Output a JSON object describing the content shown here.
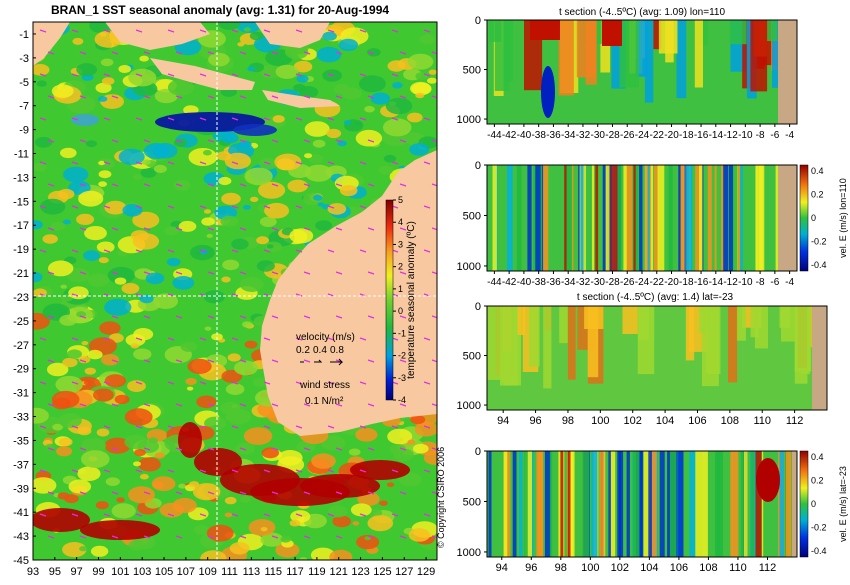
{
  "main_map": {
    "title": "BRAN_1  SST seasonal anomaly  (avg: 1.31) for 20-Aug-1994",
    "lat_ticks": [
      "-1",
      "-3",
      "-5",
      "-7",
      "-9",
      "-11",
      "-13",
      "-15",
      "-17",
      "-19",
      "-21",
      "-23",
      "-25",
      "-27",
      "-29",
      "-31",
      "-33",
      "-35",
      "-37",
      "-39",
      "-41",
      "-43",
      "-45"
    ],
    "lon_ticks": [
      "93",
      "95",
      "97",
      "99",
      "101",
      "103",
      "105",
      "107",
      "109",
      "111",
      "113",
      "115",
      "117",
      "119",
      "121",
      "123",
      "125",
      "127",
      "129"
    ],
    "colorbar": {
      "label": "temperature seasonal anomaly (ºC)",
      "ticks": [
        "5",
        "4",
        "3",
        "2",
        "1",
        "0",
        "-1",
        "-2",
        "-3",
        "-4"
      ],
      "range": [
        -4,
        5
      ]
    },
    "legend": {
      "velocity_title": "velocity (m/s)",
      "velocity_values": [
        "0.2",
        "0.4",
        "0.8"
      ],
      "wind_title": "wind stress",
      "wind_value": "0.1 N/m²"
    },
    "crosshair": {
      "lat": -23,
      "lon": 110
    },
    "colors": {
      "land": "#f8c8a0",
      "ocean_mid": "#28c028",
      "warm": "#f0e020",
      "cold": "#0818a0",
      "hot": "#b00000"
    }
  },
  "copyright": "© Copyright CSIRO 2006",
  "panels": [
    {
      "name": "t-section-lon110",
      "title": "t section (-4..5ºC) (avg: 1.09) lon=110",
      "x_ticks": [
        "-44",
        "-42",
        "-40",
        "-38",
        "-36",
        "-34",
        "-32",
        "-30",
        "-28",
        "-26",
        "-24",
        "-22",
        "-20",
        "-18",
        "-16",
        "-14",
        "-12",
        "-10",
        "-8",
        "-6",
        "-4"
      ],
      "y_ticks": [
        "0",
        "500",
        "1000"
      ],
      "colorbar": null
    },
    {
      "name": "velE-section-lon110",
      "title": "",
      "x_ticks": [
        "-44",
        "-42",
        "-40",
        "-38",
        "-36",
        "-34",
        "-32",
        "-30",
        "-28",
        "-26",
        "-24",
        "-22",
        "-20",
        "-18",
        "-16",
        "-14",
        "-12",
        "-10",
        "-8",
        "-6",
        "-4"
      ],
      "y_ticks": [
        "0",
        "500",
        "1000"
      ],
      "colorbar": {
        "label": "vel. E (m/s) lon=110",
        "ticks": [
          "0.4",
          "0.2",
          "0",
          "-0.2",
          "-0.4"
        ]
      }
    },
    {
      "name": "t-section-lat-23",
      "title": "t section (-4..5ºC) (avg: 1.4) lat=-23",
      "x_ticks": [
        "94",
        "96",
        "98",
        "100",
        "102",
        "104",
        "106",
        "108",
        "110",
        "112"
      ],
      "y_ticks": [
        "0",
        "500",
        "1000"
      ],
      "colorbar": null
    },
    {
      "name": "velE-section-lat-23",
      "title": "",
      "x_ticks": [
        "94",
        "96",
        "98",
        "100",
        "102",
        "104",
        "106",
        "108",
        "110",
        "112"
      ],
      "y_ticks": [
        "0",
        "500",
        "1000"
      ],
      "colorbar": {
        "label": "vel. E (m/s) lat=-23",
        "ticks": [
          "0.4",
          "0.2",
          "0",
          "-0.2",
          "-0.4"
        ]
      }
    }
  ],
  "chart_data": [
    {
      "type": "heatmap",
      "title": "BRAN_1  SST seasonal anomaly  (avg: 1.31) for 20-Aug-1994",
      "x_range": [
        93,
        130
      ],
      "y_range": [
        -45,
        0
      ],
      "value_range": [
        -4,
        5
      ],
      "avg": 1.31
    },
    {
      "type": "heatmap",
      "title": "t section (-4..5ºC) (avg: 1.09) lon=110",
      "x_range": [
        -45,
        -3
      ],
      "y_range": [
        0,
        1050
      ],
      "avg": 1.09
    },
    {
      "type": "heatmap",
      "title": "",
      "x_range": [
        -45,
        -3
      ],
      "y_range": [
        0,
        1050
      ],
      "value_range": [
        -0.4,
        0.4
      ]
    },
    {
      "type": "heatmap",
      "title": "t section (-4..5ºC) (avg: 1.4) lat=-23",
      "x_range": [
        93,
        114
      ],
      "y_range": [
        0,
        1050
      ],
      "avg": 1.4
    },
    {
      "type": "heatmap",
      "title": "",
      "x_range": [
        93,
        114
      ],
      "y_range": [
        0,
        1050
      ],
      "value_range": [
        -0.4,
        0.4
      ]
    }
  ]
}
